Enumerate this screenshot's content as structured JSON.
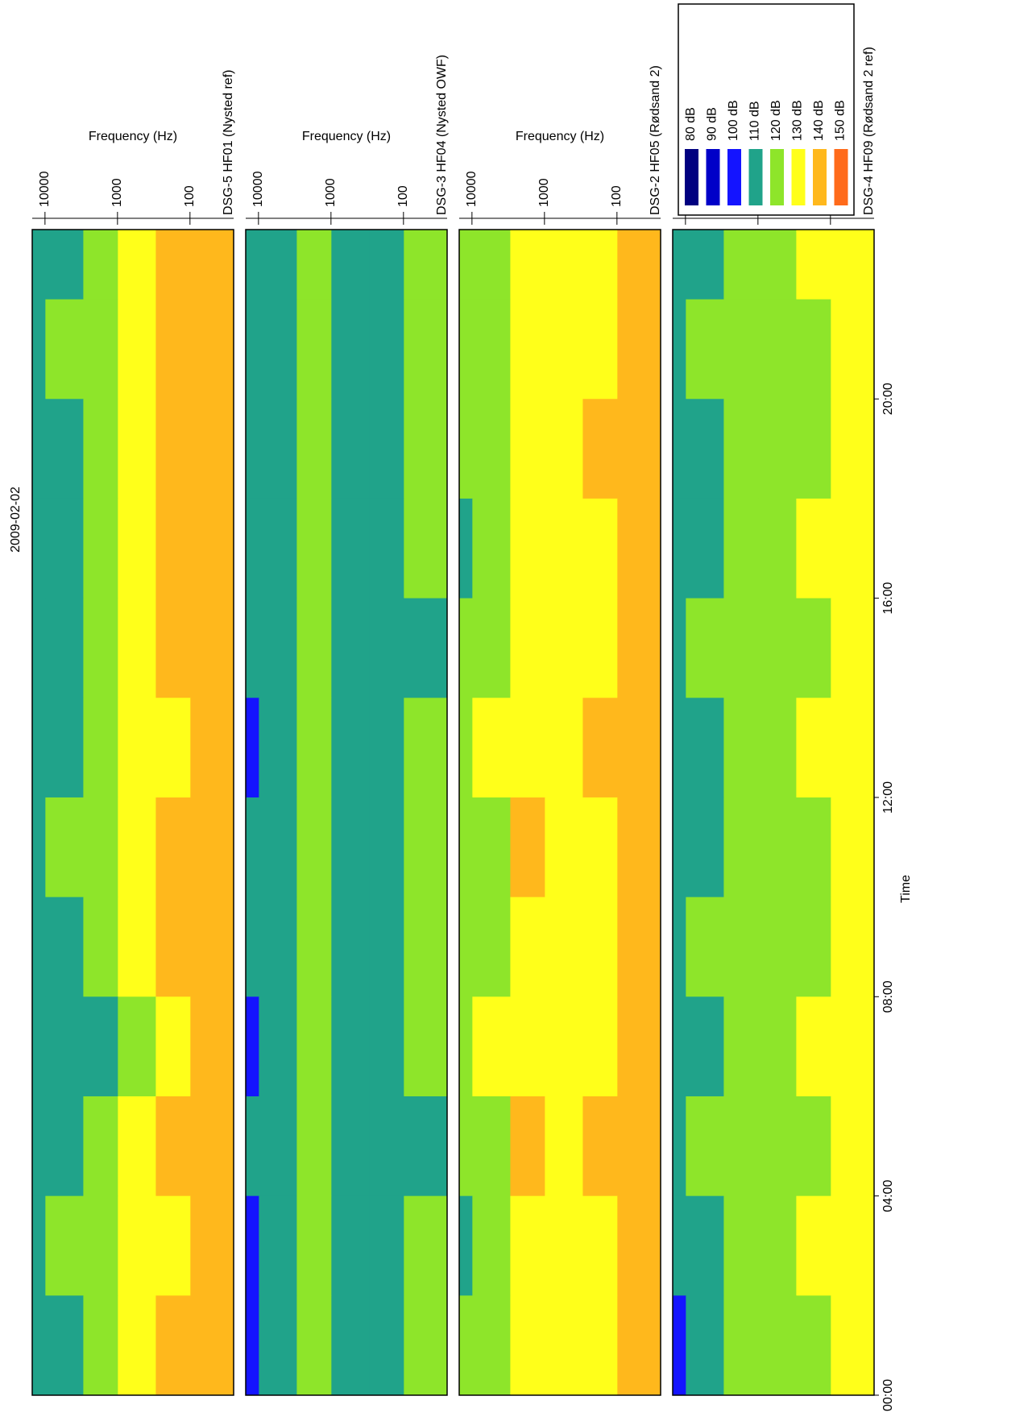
{
  "chart_data": {
    "type": "heatmap",
    "title": "2009-02-02",
    "x_label": "Time",
    "y_label": "Frequency (Hz)",
    "x_bins": [
      0,
      2,
      4,
      6,
      8,
      10,
      12,
      14,
      16,
      18,
      20,
      22,
      23.4
    ],
    "y_bins": [
      25,
      100,
      300,
      1000,
      3000,
      10000,
      15000
    ],
    "xlim": [
      0,
      23.4
    ],
    "ylim": [
      25,
      15000
    ],
    "log_y": true,
    "xticks": [
      {
        "value": 0,
        "label": "00:00"
      },
      {
        "value": 4,
        "label": "04:00"
      },
      {
        "value": 8,
        "label": "08:00"
      },
      {
        "value": 12,
        "label": "12:00"
      },
      {
        "value": 16,
        "label": "16:00"
      },
      {
        "value": 20,
        "label": "20:00"
      }
    ],
    "yticks": [
      100,
      1000,
      10000
    ],
    "legend": {
      "levels": [
        {
          "value": 80,
          "label": "80 dB"
        },
        {
          "value": 90,
          "label": "90 dB"
        },
        {
          "value": 100,
          "label": "100 dB"
        },
        {
          "value": 110,
          "label": "110 dB"
        },
        {
          "value": 120,
          "label": "120 dB"
        },
        {
          "value": 130,
          "label": "130 dB"
        },
        {
          "value": 140,
          "label": "140 dB"
        },
        {
          "value": 150,
          "label": "150 dB"
        }
      ],
      "colors": [
        "#000080",
        "#0000c8",
        "#1414ff",
        "#20a38a",
        "#8ee52a",
        "#ffff1a",
        "#ffb81c",
        "#ff6a1a"
      ]
    },
    "panels": [
      {
        "name": "DSG-5 HF01 (Nysted ref)",
        "values": [
          [
            140,
            140,
            140,
            140,
            140,
            140,
            140,
            140,
            140,
            140,
            140,
            140
          ],
          [
            140,
            130,
            140,
            130,
            140,
            140,
            130,
            140,
            140,
            140,
            140,
            140
          ],
          [
            130,
            130,
            130,
            120,
            130,
            130,
            130,
            130,
            130,
            130,
            130,
            130
          ],
          [
            120,
            120,
            120,
            110,
            120,
            120,
            120,
            120,
            120,
            120,
            120,
            120
          ],
          [
            110,
            120,
            110,
            110,
            110,
            120,
            110,
            110,
            110,
            110,
            120,
            110
          ],
          [
            110,
            110,
            110,
            110,
            110,
            110,
            110,
            110,
            110,
            110,
            110,
            110
          ]
        ]
      },
      {
        "name": "DSG-3 HF04 (Nysted OWF)",
        "values": [
          [
            120,
            120,
            110,
            120,
            120,
            120,
            120,
            110,
            120,
            120,
            120,
            120
          ],
          [
            110,
            110,
            110,
            110,
            110,
            110,
            110,
            110,
            110,
            110,
            110,
            110
          ],
          [
            110,
            110,
            110,
            110,
            110,
            110,
            110,
            110,
            110,
            110,
            110,
            110
          ],
          [
            120,
            120,
            120,
            120,
            120,
            120,
            120,
            120,
            120,
            120,
            120,
            120
          ],
          [
            110,
            110,
            110,
            110,
            110,
            110,
            110,
            110,
            110,
            110,
            110,
            110
          ],
          [
            100,
            100,
            110,
            100,
            110,
            110,
            100,
            110,
            110,
            110,
            110,
            110
          ]
        ]
      },
      {
        "name": "DSG-2 HF05 (Rødsand 2)",
        "values": [
          [
            140,
            140,
            140,
            140,
            140,
            140,
            140,
            140,
            140,
            140,
            140,
            140
          ],
          [
            130,
            130,
            140,
            130,
            130,
            130,
            140,
            130,
            130,
            140,
            130,
            130
          ],
          [
            130,
            130,
            130,
            130,
            130,
            130,
            130,
            130,
            130,
            130,
            130,
            130
          ],
          [
            130,
            130,
            140,
            130,
            130,
            140,
            130,
            130,
            130,
            130,
            130,
            130
          ],
          [
            120,
            120,
            120,
            130,
            120,
            120,
            130,
            120,
            120,
            120,
            120,
            120
          ],
          [
            120,
            110,
            120,
            120,
            120,
            120,
            120,
            120,
            110,
            120,
            120,
            120
          ]
        ]
      },
      {
        "name": "DSG-4 HF09 (Rødsand 2 ref)",
        "values": [
          [
            130,
            130,
            130,
            130,
            130,
            130,
            130,
            130,
            130,
            130,
            130,
            130
          ],
          [
            120,
            130,
            120,
            130,
            120,
            120,
            130,
            120,
            130,
            120,
            120,
            130
          ],
          [
            120,
            120,
            120,
            120,
            120,
            120,
            120,
            120,
            120,
            120,
            120,
            120
          ],
          [
            120,
            120,
            120,
            120,
            120,
            120,
            120,
            120,
            120,
            120,
            120,
            120
          ],
          [
            110,
            110,
            120,
            110,
            120,
            110,
            110,
            120,
            110,
            110,
            120,
            110
          ],
          [
            100,
            110,
            110,
            110,
            110,
            110,
            110,
            110,
            110,
            110,
            110,
            110
          ]
        ]
      }
    ]
  }
}
